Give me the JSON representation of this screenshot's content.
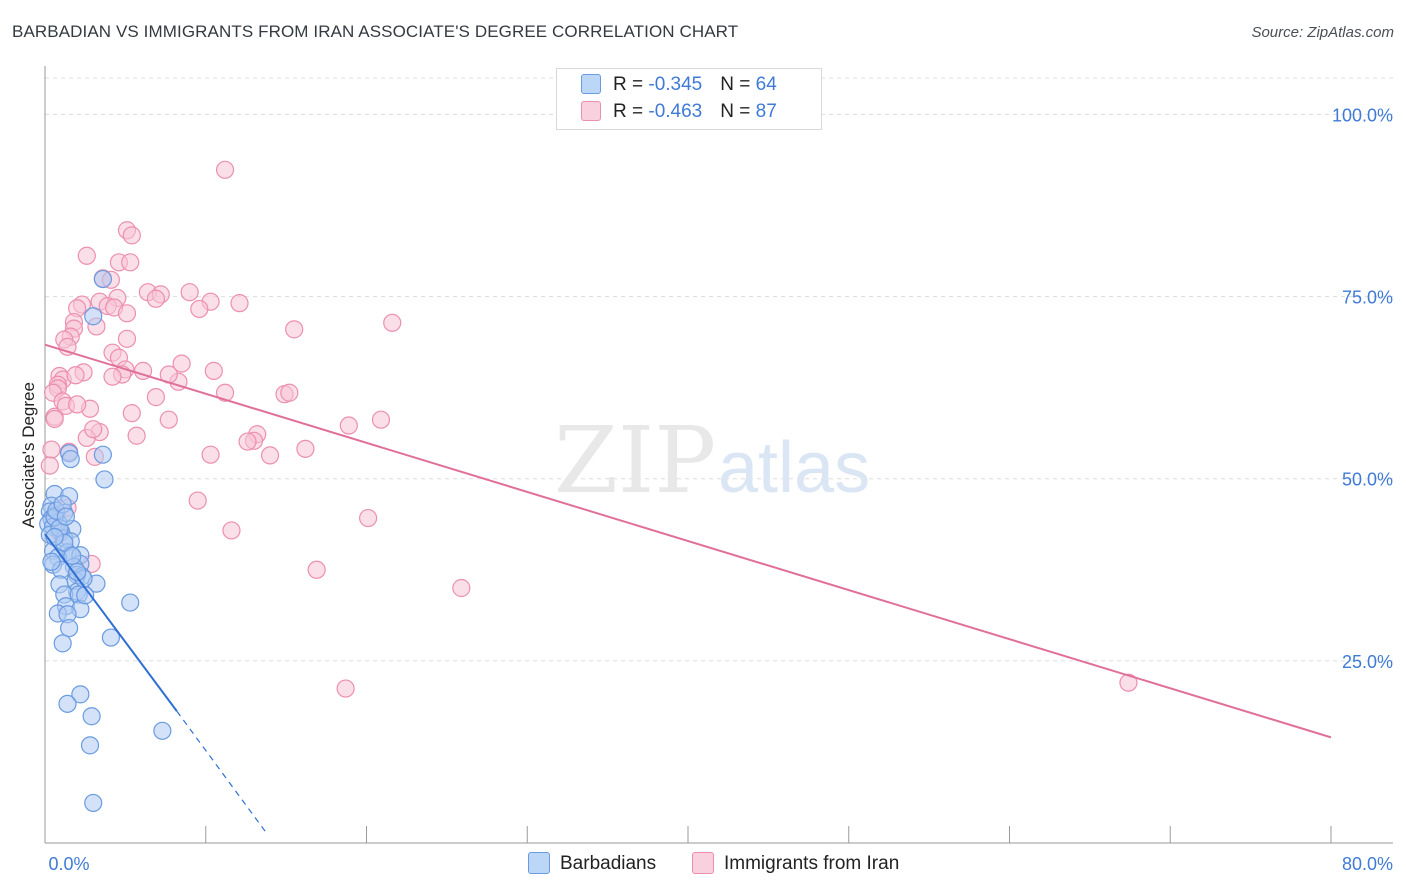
{
  "title": "BARBADIAN VS IMMIGRANTS FROM IRAN ASSOCIATE'S DEGREE CORRELATION CHART",
  "source": "Source: ZipAtlas.com",
  "watermark": {
    "zip": "ZIP",
    "atlas": "atlas"
  },
  "legend": {
    "r_label": "R = ",
    "n_label": "N = ",
    "barbadians": {
      "r": "-0.345",
      "n": "64"
    },
    "iran": {
      "r": "-0.463",
      "n": "87"
    }
  },
  "bottom_legend": {
    "barbadians": "Barbadians",
    "iran": "Immigrants from Iran"
  },
  "colors": {
    "blue_fill": "#aecbf2",
    "blue_stroke": "#6a9be0",
    "blue_line": "#2f6fd4",
    "pink_fill": "#f7c4d5",
    "pink_stroke": "#ec8fae",
    "pink_line": "#e0709a",
    "tick": "#3f7bd6",
    "grid": "#dddddd"
  },
  "chart_data": {
    "type": "scatter",
    "title": "BARBADIAN VS IMMIGRANTS FROM IRAN ASSOCIATE'S DEGREE CORRELATION CHART",
    "xlabel": "",
    "ylabel": "Associate's Degree",
    "xlim": [
      0,
      80
    ],
    "ylim": [
      0,
      105
    ],
    "x_tick_labels": [
      {
        "value": 0,
        "label": "0.0%"
      },
      {
        "value": 80,
        "label": "80.0%"
      }
    ],
    "y_tick_labels": [
      {
        "value": 25,
        "label": "25.0%"
      },
      {
        "value": 50,
        "label": "50.0%"
      },
      {
        "value": 75,
        "label": "75.0%"
      },
      {
        "value": 100,
        "label": "100.0%"
      }
    ],
    "grid": true,
    "series": [
      {
        "name": "Barbadians",
        "color": "blue",
        "points": [
          [
            3.6,
            77.4
          ],
          [
            3.0,
            72.3
          ],
          [
            3.6,
            53.3
          ],
          [
            1.5,
            53.5
          ],
          [
            1.6,
            52.7
          ],
          [
            3.7,
            49.9
          ],
          [
            0.6,
            47.9
          ],
          [
            1.5,
            47.6
          ],
          [
            0.4,
            46.3
          ],
          [
            0.3,
            45.5
          ],
          [
            1.2,
            45.3
          ],
          [
            0.6,
            44.9
          ],
          [
            0.4,
            44.5
          ],
          [
            0.8,
            44.0
          ],
          [
            0.2,
            43.8
          ],
          [
            0.5,
            43.4
          ],
          [
            1.7,
            43.1
          ],
          [
            1.0,
            42.7
          ],
          [
            0.3,
            42.3
          ],
          [
            1.2,
            41.8
          ],
          [
            1.6,
            41.4
          ],
          [
            0.5,
            40.1
          ],
          [
            1.4,
            39.9
          ],
          [
            1.6,
            39.5
          ],
          [
            2.2,
            39.5
          ],
          [
            0.8,
            39.2
          ],
          [
            0.5,
            38.2
          ],
          [
            2.2,
            38.3
          ],
          [
            1.8,
            37.9
          ],
          [
            1.0,
            37.5
          ],
          [
            2.0,
            36.8
          ],
          [
            2.3,
            36.6
          ],
          [
            1.9,
            36.0
          ],
          [
            0.9,
            35.5
          ],
          [
            3.2,
            35.6
          ],
          [
            2.0,
            34.5
          ],
          [
            1.2,
            34.1
          ],
          [
            2.1,
            34.1
          ],
          [
            5.3,
            33.0
          ],
          [
            1.3,
            32.5
          ],
          [
            2.2,
            32.1
          ],
          [
            0.8,
            31.5
          ],
          [
            1.4,
            31.4
          ],
          [
            1.5,
            29.5
          ],
          [
            4.1,
            28.2
          ],
          [
            1.1,
            27.4
          ],
          [
            2.2,
            20.4
          ],
          [
            1.4,
            19.1
          ],
          [
            2.9,
            17.4
          ],
          [
            7.3,
            15.4
          ],
          [
            2.8,
            13.4
          ],
          [
            3.0,
            5.5
          ],
          [
            0.6,
            44.7
          ],
          [
            0.9,
            43.2
          ],
          [
            2.4,
            36.3
          ],
          [
            1.2,
            41.2
          ],
          [
            0.7,
            45.6
          ],
          [
            1.7,
            39.4
          ],
          [
            2.5,
            34.0
          ],
          [
            0.4,
            38.6
          ],
          [
            1.1,
            46.5
          ],
          [
            0.6,
            42.0
          ],
          [
            2.0,
            37.2
          ],
          [
            1.3,
            44.8
          ]
        ]
      },
      {
        "name": "Immigrants from Iran",
        "color": "pink",
        "points": [
          [
            11.2,
            92.4
          ],
          [
            5.1,
            84.1
          ],
          [
            5.4,
            83.4
          ],
          [
            2.6,
            80.6
          ],
          [
            4.6,
            79.7
          ],
          [
            5.3,
            79.7
          ],
          [
            3.6,
            77.5
          ],
          [
            4.1,
            77.3
          ],
          [
            6.4,
            75.6
          ],
          [
            9.0,
            75.6
          ],
          [
            7.2,
            75.3
          ],
          [
            6.9,
            74.7
          ],
          [
            4.5,
            74.8
          ],
          [
            3.4,
            74.3
          ],
          [
            10.3,
            74.3
          ],
          [
            12.1,
            74.1
          ],
          [
            2.3,
            73.9
          ],
          [
            3.9,
            73.7
          ],
          [
            2.0,
            73.4
          ],
          [
            9.6,
            73.3
          ],
          [
            4.3,
            73.5
          ],
          [
            5.1,
            72.7
          ],
          [
            1.8,
            71.5
          ],
          [
            21.6,
            71.4
          ],
          [
            3.2,
            70.9
          ],
          [
            1.8,
            70.6
          ],
          [
            15.5,
            70.5
          ],
          [
            1.6,
            69.5
          ],
          [
            1.2,
            69.1
          ],
          [
            5.1,
            69.2
          ],
          [
            1.4,
            68.1
          ],
          [
            4.2,
            67.3
          ],
          [
            4.6,
            66.6
          ],
          [
            8.5,
            65.8
          ],
          [
            5.0,
            65.0
          ],
          [
            10.5,
            64.8
          ],
          [
            2.4,
            64.6
          ],
          [
            4.8,
            64.3
          ],
          [
            4.2,
            64.0
          ],
          [
            0.9,
            64.1
          ],
          [
            1.1,
            63.6
          ],
          [
            8.3,
            63.3
          ],
          [
            0.8,
            62.9
          ],
          [
            0.8,
            62.4
          ],
          [
            0.5,
            61.8
          ],
          [
            11.2,
            61.8
          ],
          [
            14.9,
            61.6
          ],
          [
            15.2,
            61.8
          ],
          [
            6.9,
            61.2
          ],
          [
            1.1,
            60.6
          ],
          [
            2.8,
            59.6
          ],
          [
            5.4,
            59.0
          ],
          [
            0.6,
            58.5
          ],
          [
            0.6,
            58.2
          ],
          [
            7.7,
            58.1
          ],
          [
            20.9,
            58.1
          ],
          [
            18.9,
            57.3
          ],
          [
            3.4,
            56.4
          ],
          [
            13.2,
            56.1
          ],
          [
            5.7,
            55.9
          ],
          [
            2.6,
            55.6
          ],
          [
            13.0,
            55.2
          ],
          [
            12.6,
            55.1
          ],
          [
            16.2,
            54.1
          ],
          [
            0.4,
            54.0
          ],
          [
            1.5,
            53.7
          ],
          [
            3.1,
            53.0
          ],
          [
            10.3,
            53.3
          ],
          [
            14.0,
            53.2
          ],
          [
            0.3,
            51.8
          ],
          [
            9.5,
            47.0
          ],
          [
            1.4,
            46.0
          ],
          [
            20.1,
            44.6
          ],
          [
            11.6,
            42.9
          ],
          [
            2.9,
            38.3
          ],
          [
            16.9,
            37.5
          ],
          [
            25.9,
            35.0
          ],
          [
            18.7,
            21.2
          ],
          [
            67.4,
            22.0
          ],
          [
            0.9,
            42.6
          ],
          [
            0.7,
            45.2
          ],
          [
            1.3,
            60.0
          ],
          [
            2.0,
            60.2
          ],
          [
            6.1,
            64.8
          ],
          [
            3.0,
            56.8
          ],
          [
            1.9,
            64.2
          ],
          [
            7.7,
            64.3
          ]
        ]
      }
    ],
    "trend_lines": [
      {
        "series": "Barbadians",
        "x1": 0,
        "y1": 42.4,
        "x2": 8.2,
        "y2": 18.1,
        "dashed_to": {
          "x": 13.8,
          "y": 1.3
        }
      },
      {
        "series": "Immigrants from Iran",
        "x1": 0,
        "y1": 68.4,
        "x2": 80,
        "y2": 14.5
      }
    ]
  }
}
